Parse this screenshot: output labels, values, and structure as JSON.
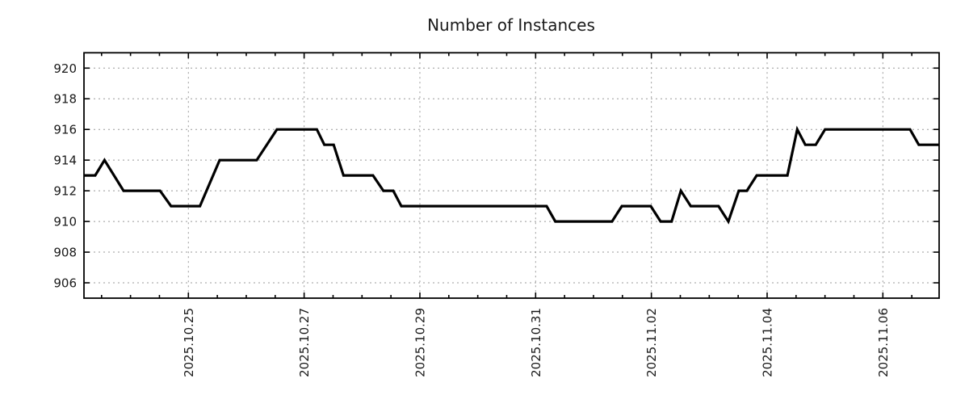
{
  "chart_data": {
    "type": "line",
    "title": "Number of Instances",
    "legend": "none",
    "grid": {
      "show": true,
      "style": "dashed",
      "color": "#999999",
      "dash": "2 4"
    },
    "colors": {
      "line": "#000000",
      "border": "#000000",
      "text": "#1a1a1a",
      "background": "#ffffff"
    },
    "x_axis": {
      "unit": "days",
      "range_days": [
        0.196,
        14.972
      ],
      "minor_tick_step_days": 0.5,
      "label_rotation_deg": -90,
      "major_ticks": [
        {
          "t": 2,
          "label": "2025.10.25"
        },
        {
          "t": 4,
          "label": "2025.10.27"
        },
        {
          "t": 6,
          "label": "2025.10.29"
        },
        {
          "t": 8,
          "label": "2025.10.31"
        },
        {
          "t": 10,
          "label": "2025.11.02"
        },
        {
          "t": 12,
          "label": "2025.11.04"
        },
        {
          "t": 14,
          "label": "2025.11.06"
        }
      ]
    },
    "y_axis": {
      "range": [
        905,
        921
      ],
      "major_ticks": [
        906,
        908,
        910,
        912,
        914,
        916,
        918,
        920
      ]
    },
    "series": [
      {
        "name": "instances",
        "color": "#000000",
        "width": 3.2,
        "points": [
          [
            0.2,
            913
          ],
          [
            0.39,
            913
          ],
          [
            0.55,
            914
          ],
          [
            0.88,
            912
          ],
          [
            1.51,
            912
          ],
          [
            1.7,
            911
          ],
          [
            2.2,
            911
          ],
          [
            2.54,
            914
          ],
          [
            3.18,
            914
          ],
          [
            3.53,
            916
          ],
          [
            4.22,
            916
          ],
          [
            4.35,
            915
          ],
          [
            4.51,
            915
          ],
          [
            4.68,
            913
          ],
          [
            5.19,
            913
          ],
          [
            5.37,
            912
          ],
          [
            5.54,
            912
          ],
          [
            5.68,
            911
          ],
          [
            8.19,
            911
          ],
          [
            8.34,
            910
          ],
          [
            9.32,
            910
          ],
          [
            9.49,
            911
          ],
          [
            9.99,
            911
          ],
          [
            10.16,
            910
          ],
          [
            10.35,
            910
          ],
          [
            10.51,
            912
          ],
          [
            10.68,
            911
          ],
          [
            11.16,
            911
          ],
          [
            11.33,
            910
          ],
          [
            11.51,
            912
          ],
          [
            11.65,
            912
          ],
          [
            11.82,
            913
          ],
          [
            12.35,
            913
          ],
          [
            12.52,
            916
          ],
          [
            12.66,
            915
          ],
          [
            12.84,
            915
          ],
          [
            13.0,
            916
          ],
          [
            14.47,
            916
          ],
          [
            14.62,
            915
          ],
          [
            14.97,
            915
          ]
        ]
      }
    ]
  }
}
